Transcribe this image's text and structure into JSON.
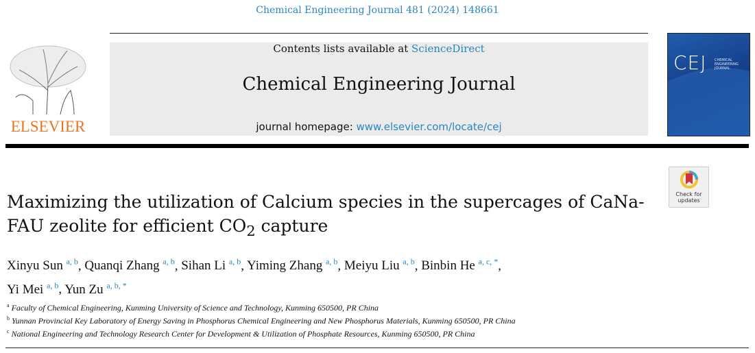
{
  "journal_reference": "Chemical Engineering Journal 481 (2024) 148661",
  "header": {
    "contents_prefix": "Contents lists available at ",
    "contents_link": "ScienceDirect",
    "journal_title": "Chemical Engineering Journal",
    "homepage_prefix": "journal homepage: ",
    "homepage_link": "www.elsevier.com/locate/cej",
    "publisher": "ELSEVIER"
  },
  "cover": {
    "abbrev": "CEJ",
    "line1": "CHEMICAL",
    "line2": "ENGINEERING",
    "line3": "JOURNAL"
  },
  "badge": {
    "line1": "Check for",
    "line2": "updates"
  },
  "article": {
    "title_part1": "Maximizing the utilization of Calcium species in the supercages of CaNa-FAU zeolite for efficient CO",
    "title_sub": "2",
    "title_part2": " capture"
  },
  "authors": [
    {
      "name": "Xinyu Sun",
      "aff": "a, b"
    },
    {
      "name": "Quanqi Zhang",
      "aff": "a, b"
    },
    {
      "name": "Sihan Li",
      "aff": "a, b"
    },
    {
      "name": "Yiming Zhang",
      "aff": "a, b"
    },
    {
      "name": "Meiyu Liu",
      "aff": "a, b"
    },
    {
      "name": "Binbin He",
      "aff": "a, c, *"
    },
    {
      "name": "Yi Mei",
      "aff": "a, b"
    },
    {
      "name": "Yun Zu",
      "aff": "a, b, *"
    }
  ],
  "affiliations": [
    {
      "key": "a",
      "text": "Faculty of Chemical Engineering, Kunming University of Science and Technology, Kunming 650500, PR China"
    },
    {
      "key": "b",
      "text": "Yunnan Provincial Key Laboratory of Energy Saving in Phosphorus Chemical Engineering and New Phosphorus Materials, Kunming 650500, PR China"
    },
    {
      "key": "c",
      "text": "National Engineering and Technology Research Center for Development & Utilization of Phosphate Resources, Kunming 650500, PR China"
    }
  ]
}
